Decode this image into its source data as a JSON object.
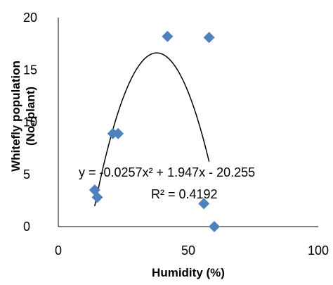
{
  "chart_data": {
    "type": "scatter",
    "xlabel": "Humidity (%)",
    "ylabel_lines": [
      "Whitefly population",
      "(No./plant)"
    ],
    "xlim": [
      0,
      100
    ],
    "ylim": [
      0,
      20
    ],
    "x_ticks": [
      "0",
      "50",
      "100"
    ],
    "y_ticks": [
      "0",
      "5",
      "10",
      "15",
      "20"
    ],
    "grid": false,
    "legend": "none",
    "marker_color": "#4f81bd",
    "marker_shape": "diamond",
    "points": [
      {
        "x": 14,
        "y": 3.5
      },
      {
        "x": 15,
        "y": 2.8
      },
      {
        "x": 21,
        "y": 8.9
      },
      {
        "x": 23,
        "y": 8.9
      },
      {
        "x": 42,
        "y": 18.2
      },
      {
        "x": 56,
        "y": 2.2
      },
      {
        "x": 58,
        "y": 18.1
      },
      {
        "x": 60,
        "y": 0
      }
    ],
    "trendline": {
      "type": "polynomial",
      "a": -0.0257,
      "b": 1.947,
      "c": -20.255,
      "x_range": [
        14,
        58
      ],
      "equation_text": "y = -0.0257x² + 1.947x - 20.255",
      "r2_text": "R² = 0.4192"
    }
  }
}
